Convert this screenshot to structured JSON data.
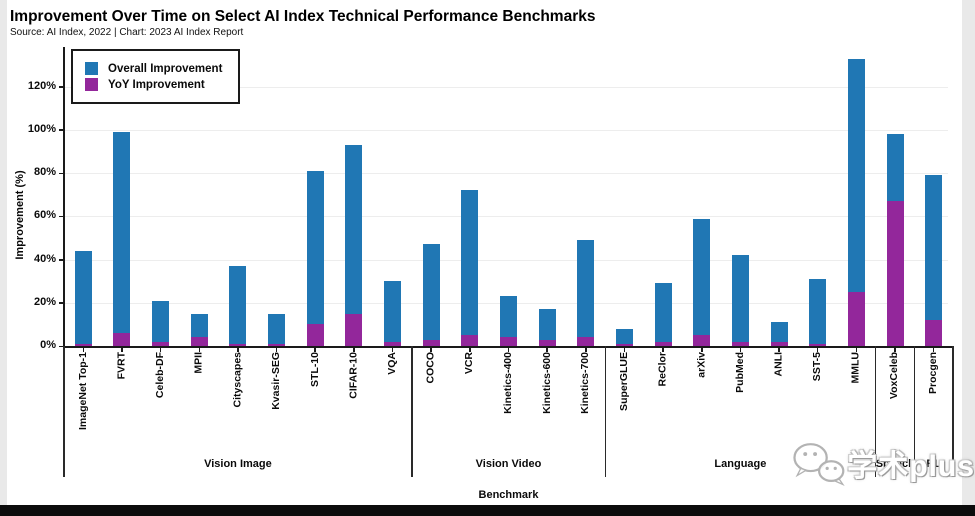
{
  "page": {
    "title": "Improvement Over Time on Select AI Index Technical Performance Benchmarks",
    "subtitle": "Source: AI Index, 2022 | Chart: 2023 AI Index Report"
  },
  "legend": [
    {
      "label": "Overall Improvement",
      "color": "#2077b4"
    },
    {
      "label": "YoY Improvement",
      "color": "#93279b"
    }
  ],
  "watermark": {
    "icon": "wechat-icon",
    "text": "学术plus"
  },
  "chart_data": {
    "type": "bar",
    "title": "Improvement Over Time on Select AI Index Technical Performance Benchmarks",
    "xlabel": "Benchmark",
    "ylabel": "Improvement (%)",
    "ylim": [
      0,
      137
    ],
    "yticks": [
      0,
      20,
      40,
      60,
      80,
      100,
      120
    ],
    "ytick_labels": [
      "0%",
      "20%",
      "40%",
      "60%",
      "80%",
      "100%",
      "120%"
    ],
    "grid": true,
    "legend_position": "top-left",
    "categories": [
      "ImageNet Top-1",
      "FVRT",
      "Celeb-DF",
      "MPII",
      "Cityscapes",
      "Kvasir-SEG",
      "STL-10",
      "CIFAR-10",
      "VQA",
      "COCO",
      "VCR",
      "Kinetics-400",
      "Kinetics-600",
      "Kinetics-700",
      "SuperGLUE",
      "ReClor",
      "arXiv",
      "PubMed",
      "ANLI",
      "SST-5",
      "MMLU",
      "VoxCeleb",
      "Procgen"
    ],
    "series": [
      {
        "name": "Overall Improvement",
        "color": "#2077b4",
        "values": [
          44,
          99,
          21,
          15,
          37,
          15,
          81,
          93,
          30,
          47,
          72,
          23,
          17,
          49,
          8,
          29,
          59,
          42,
          11,
          31,
          133,
          98,
          79
        ]
      },
      {
        "name": "YoY Improvement",
        "color": "#93279b",
        "values": [
          1,
          6,
          2,
          4,
          1,
          1,
          10,
          15,
          2,
          3,
          5,
          4,
          3,
          4,
          1,
          2,
          5,
          2,
          2,
          1,
          25,
          67,
          12
        ]
      }
    ],
    "groups": [
      {
        "label": "Vision Image",
        "count": 9
      },
      {
        "label": "Vision Video",
        "count": 5
      },
      {
        "label": "Language",
        "count": 7
      },
      {
        "label": "Speech",
        "count": 1
      },
      {
        "label": "RL",
        "count": 1
      }
    ]
  }
}
